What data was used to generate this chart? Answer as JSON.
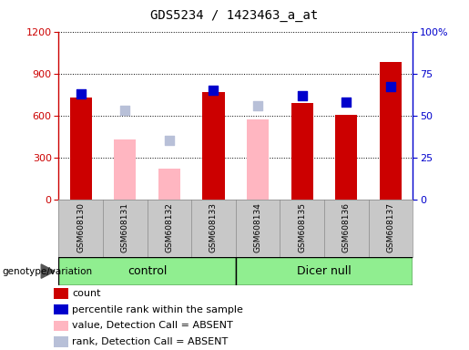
{
  "title": "GDS5234 / 1423463_a_at",
  "samples": [
    "GSM608130",
    "GSM608131",
    "GSM608132",
    "GSM608133",
    "GSM608134",
    "GSM608135",
    "GSM608136",
    "GSM608137"
  ],
  "count_values": [
    730,
    null,
    null,
    770,
    null,
    690,
    605,
    980
  ],
  "percentile_rank_pct": [
    63,
    null,
    null,
    65,
    null,
    62,
    58,
    67
  ],
  "absent_value": [
    null,
    430,
    220,
    null,
    570,
    null,
    null,
    null
  ],
  "absent_rank_pct": [
    null,
    53,
    35,
    null,
    56,
    null,
    null,
    null
  ],
  "ylim_left": [
    0,
    1200
  ],
  "ylim_right": [
    0,
    100
  ],
  "yticks_left": [
    0,
    300,
    600,
    900,
    1200
  ],
  "yticks_right": [
    0,
    25,
    50,
    75,
    100
  ],
  "yticklabels_right": [
    "0",
    "25",
    "50",
    "75",
    "100%"
  ],
  "colors": {
    "count": "#CC0000",
    "percentile_rank": "#0000CC",
    "absent_value": "#FFB6C1",
    "absent_rank": "#B8C0D8",
    "left_axis_color": "#CC0000",
    "right_axis_color": "#0000CC",
    "plot_bg": "#ffffff",
    "label_bg": "#C8C8C8",
    "group_bg": "#90EE90"
  },
  "control_range": [
    0,
    3
  ],
  "dicer_range": [
    4,
    7
  ],
  "legend_items": [
    {
      "color": "#CC0000",
      "label": "count"
    },
    {
      "color": "#0000CC",
      "label": "percentile rank within the sample"
    },
    {
      "color": "#FFB6C1",
      "label": "value, Detection Call = ABSENT"
    },
    {
      "color": "#B8C0D8",
      "label": "rank, Detection Call = ABSENT"
    }
  ]
}
